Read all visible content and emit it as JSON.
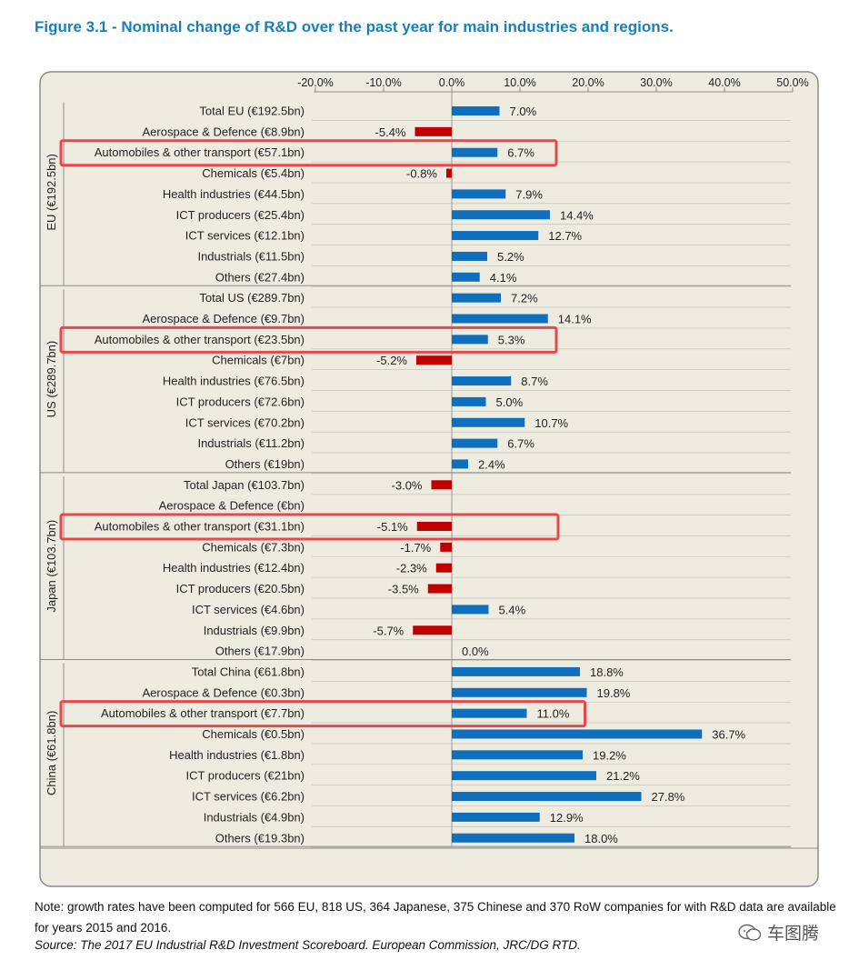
{
  "figure_title": "Figure 3.1 - Nominal change of R&D over the past year for main industries and regions.",
  "note": "Note:  growth rates have been computed for 566 EU, 818 US, 364 Japanese, 375 Chinese and 370 RoW companies for with R&D data are available for years 2015 and 2016.",
  "source": "Source:   The 2017 EU Industrial R&D Investment Scoreboard. European Commission, JRC/DG RTD.",
  "watermark": "车图腾",
  "colors": {
    "positive": "#0f6fbf",
    "negative": "#c00000",
    "highlight": "#e8474b",
    "panel": "#eeece1",
    "title": "#1a7fb5"
  },
  "chart_data": {
    "type": "bar",
    "orientation": "horizontal",
    "xlim": [
      -0.2,
      0.5
    ],
    "x_ticks": [
      "-20.0%",
      "-10.0%",
      "0.0%",
      "10.0%",
      "20.0%",
      "30.0%",
      "40.0%",
      "50.0%"
    ],
    "x_tick_values": [
      -0.2,
      -0.1,
      0.0,
      0.1,
      0.2,
      0.3,
      0.4,
      0.5
    ],
    "groups": [
      {
        "name": "EU (€192.5bn)",
        "rows": [
          {
            "label": "Total EU (€192.5bn)",
            "value": 0.07,
            "value_label": "7.0%"
          },
          {
            "label": "Aerospace & Defence (€8.9bn)",
            "value": -0.054,
            "value_label": "-5.4%"
          },
          {
            "label": "Automobiles & other transport (€57.1bn)",
            "value": 0.067,
            "value_label": "6.7%",
            "highlight": true
          },
          {
            "label": "Chemicals (€5.4bn)",
            "value": -0.008,
            "value_label": "-0.8%"
          },
          {
            "label": "Health industries (€44.5bn)",
            "value": 0.079,
            "value_label": "7.9%"
          },
          {
            "label": "ICT producers (€25.4bn)",
            "value": 0.144,
            "value_label": "14.4%"
          },
          {
            "label": "ICT services (€12.1bn)",
            "value": 0.127,
            "value_label": "12.7%"
          },
          {
            "label": "Industrials (€11.5bn)",
            "value": 0.052,
            "value_label": "5.2%"
          },
          {
            "label": "Others (€27.4bn)",
            "value": 0.041,
            "value_label": "4.1%"
          }
        ]
      },
      {
        "name": "US (€289.7bn)",
        "rows": [
          {
            "label": "Total US (€289.7bn)",
            "value": 0.072,
            "value_label": "7.2%"
          },
          {
            "label": "Aerospace & Defence (€9.7bn)",
            "value": 0.141,
            "value_label": "14.1%"
          },
          {
            "label": "Automobiles & other transport (€23.5bn)",
            "value": 0.053,
            "value_label": "5.3%",
            "highlight": true
          },
          {
            "label": "Chemicals (€7bn)",
            "value": -0.052,
            "value_label": "-5.2%"
          },
          {
            "label": "Health industries (€76.5bn)",
            "value": 0.087,
            "value_label": "8.7%"
          },
          {
            "label": "ICT producers (€72.6bn)",
            "value": 0.05,
            "value_label": "5.0%"
          },
          {
            "label": "ICT services (€70.2bn)",
            "value": 0.107,
            "value_label": "10.7%"
          },
          {
            "label": "Industrials (€11.2bn)",
            "value": 0.067,
            "value_label": "6.7%"
          },
          {
            "label": "Others (€19bn)",
            "value": 0.024,
            "value_label": "2.4%"
          }
        ]
      },
      {
        "name": "Japan (€103.7bn)",
        "rows": [
          {
            "label": "Total Japan (€103.7bn)",
            "value": -0.03,
            "value_label": "-3.0%"
          },
          {
            "label": "Aerospace & Defence (€bn)",
            "value": null,
            "value_label": ""
          },
          {
            "label": "Automobiles & other transport (€31.1bn)",
            "value": -0.051,
            "value_label": "-5.1%",
            "highlight": true
          },
          {
            "label": "Chemicals (€7.3bn)",
            "value": -0.017,
            "value_label": "-1.7%"
          },
          {
            "label": "Health industries (€12.4bn)",
            "value": -0.023,
            "value_label": "-2.3%"
          },
          {
            "label": "ICT producers (€20.5bn)",
            "value": -0.035,
            "value_label": "-3.5%"
          },
          {
            "label": "ICT services (€4.6bn)",
            "value": 0.054,
            "value_label": "5.4%"
          },
          {
            "label": "Industrials (€9.9bn)",
            "value": -0.057,
            "value_label": "-5.7%"
          },
          {
            "label": "Others (€17.9bn)",
            "value": 0.0,
            "value_label": "0.0%"
          }
        ]
      },
      {
        "name": "China (€61.8bn)",
        "rows": [
          {
            "label": "Total China (€61.8bn)",
            "value": 0.188,
            "value_label": "18.8%"
          },
          {
            "label": "Aerospace & Defence (€0.3bn)",
            "value": 0.198,
            "value_label": "19.8%"
          },
          {
            "label": "Automobiles & other transport (€7.7bn)",
            "value": 0.11,
            "value_label": "11.0%",
            "highlight": true
          },
          {
            "label": "Chemicals (€0.5bn)",
            "value": 0.367,
            "value_label": "36.7%"
          },
          {
            "label": "Health industries (€1.8bn)",
            "value": 0.192,
            "value_label": "19.2%"
          },
          {
            "label": "ICT producers (€21bn)",
            "value": 0.212,
            "value_label": "21.2%"
          },
          {
            "label": "ICT services (€6.2bn)",
            "value": 0.278,
            "value_label": "27.8%"
          },
          {
            "label": "Industrials (€4.9bn)",
            "value": 0.129,
            "value_label": "12.9%"
          },
          {
            "label": "Others (€19.3bn)",
            "value": 0.18,
            "value_label": "18.0%"
          }
        ]
      }
    ],
    "grid": true
  }
}
